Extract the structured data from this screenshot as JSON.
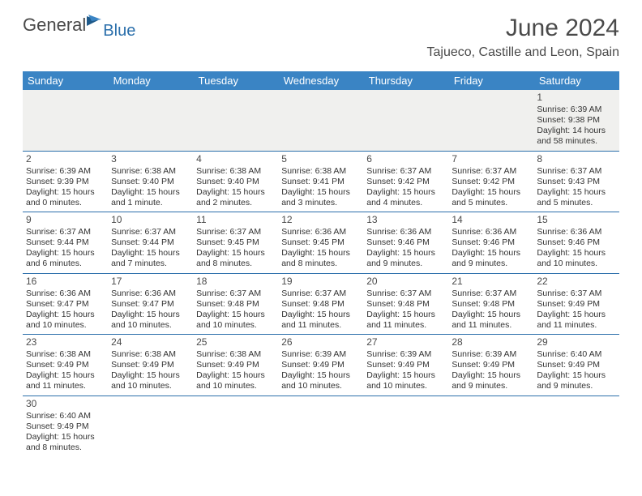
{
  "brand": {
    "part1": "General",
    "part2": "Blue",
    "flag_color_dark": "#1f5a8a",
    "flag_color_light": "#3a84c4"
  },
  "title": "June 2024",
  "location": "Tajueco, Castille and Leon, Spain",
  "header_bg": "#3a84c4",
  "header_text": "#ffffff",
  "rule_color": "#2b6fab",
  "first_row_bg": "#f0f0ee",
  "day_headers": [
    "Sunday",
    "Monday",
    "Tuesday",
    "Wednesday",
    "Thursday",
    "Friday",
    "Saturday"
  ],
  "weeks": [
    [
      null,
      null,
      null,
      null,
      null,
      null,
      {
        "n": "1",
        "sr": "Sunrise: 6:39 AM",
        "ss": "Sunset: 9:38 PM",
        "d1": "Daylight: 14 hours",
        "d2": "and 58 minutes."
      }
    ],
    [
      {
        "n": "2",
        "sr": "Sunrise: 6:39 AM",
        "ss": "Sunset: 9:39 PM",
        "d1": "Daylight: 15 hours",
        "d2": "and 0 minutes."
      },
      {
        "n": "3",
        "sr": "Sunrise: 6:38 AM",
        "ss": "Sunset: 9:40 PM",
        "d1": "Daylight: 15 hours",
        "d2": "and 1 minute."
      },
      {
        "n": "4",
        "sr": "Sunrise: 6:38 AM",
        "ss": "Sunset: 9:40 PM",
        "d1": "Daylight: 15 hours",
        "d2": "and 2 minutes."
      },
      {
        "n": "5",
        "sr": "Sunrise: 6:38 AM",
        "ss": "Sunset: 9:41 PM",
        "d1": "Daylight: 15 hours",
        "d2": "and 3 minutes."
      },
      {
        "n": "6",
        "sr": "Sunrise: 6:37 AM",
        "ss": "Sunset: 9:42 PM",
        "d1": "Daylight: 15 hours",
        "d2": "and 4 minutes."
      },
      {
        "n": "7",
        "sr": "Sunrise: 6:37 AM",
        "ss": "Sunset: 9:42 PM",
        "d1": "Daylight: 15 hours",
        "d2": "and 5 minutes."
      },
      {
        "n": "8",
        "sr": "Sunrise: 6:37 AM",
        "ss": "Sunset: 9:43 PM",
        "d1": "Daylight: 15 hours",
        "d2": "and 5 minutes."
      }
    ],
    [
      {
        "n": "9",
        "sr": "Sunrise: 6:37 AM",
        "ss": "Sunset: 9:44 PM",
        "d1": "Daylight: 15 hours",
        "d2": "and 6 minutes."
      },
      {
        "n": "10",
        "sr": "Sunrise: 6:37 AM",
        "ss": "Sunset: 9:44 PM",
        "d1": "Daylight: 15 hours",
        "d2": "and 7 minutes."
      },
      {
        "n": "11",
        "sr": "Sunrise: 6:37 AM",
        "ss": "Sunset: 9:45 PM",
        "d1": "Daylight: 15 hours",
        "d2": "and 8 minutes."
      },
      {
        "n": "12",
        "sr": "Sunrise: 6:36 AM",
        "ss": "Sunset: 9:45 PM",
        "d1": "Daylight: 15 hours",
        "d2": "and 8 minutes."
      },
      {
        "n": "13",
        "sr": "Sunrise: 6:36 AM",
        "ss": "Sunset: 9:46 PM",
        "d1": "Daylight: 15 hours",
        "d2": "and 9 minutes."
      },
      {
        "n": "14",
        "sr": "Sunrise: 6:36 AM",
        "ss": "Sunset: 9:46 PM",
        "d1": "Daylight: 15 hours",
        "d2": "and 9 minutes."
      },
      {
        "n": "15",
        "sr": "Sunrise: 6:36 AM",
        "ss": "Sunset: 9:46 PM",
        "d1": "Daylight: 15 hours",
        "d2": "and 10 minutes."
      }
    ],
    [
      {
        "n": "16",
        "sr": "Sunrise: 6:36 AM",
        "ss": "Sunset: 9:47 PM",
        "d1": "Daylight: 15 hours",
        "d2": "and 10 minutes."
      },
      {
        "n": "17",
        "sr": "Sunrise: 6:36 AM",
        "ss": "Sunset: 9:47 PM",
        "d1": "Daylight: 15 hours",
        "d2": "and 10 minutes."
      },
      {
        "n": "18",
        "sr": "Sunrise: 6:37 AM",
        "ss": "Sunset: 9:48 PM",
        "d1": "Daylight: 15 hours",
        "d2": "and 10 minutes."
      },
      {
        "n": "19",
        "sr": "Sunrise: 6:37 AM",
        "ss": "Sunset: 9:48 PM",
        "d1": "Daylight: 15 hours",
        "d2": "and 11 minutes."
      },
      {
        "n": "20",
        "sr": "Sunrise: 6:37 AM",
        "ss": "Sunset: 9:48 PM",
        "d1": "Daylight: 15 hours",
        "d2": "and 11 minutes."
      },
      {
        "n": "21",
        "sr": "Sunrise: 6:37 AM",
        "ss": "Sunset: 9:48 PM",
        "d1": "Daylight: 15 hours",
        "d2": "and 11 minutes."
      },
      {
        "n": "22",
        "sr": "Sunrise: 6:37 AM",
        "ss": "Sunset: 9:49 PM",
        "d1": "Daylight: 15 hours",
        "d2": "and 11 minutes."
      }
    ],
    [
      {
        "n": "23",
        "sr": "Sunrise: 6:38 AM",
        "ss": "Sunset: 9:49 PM",
        "d1": "Daylight: 15 hours",
        "d2": "and 11 minutes."
      },
      {
        "n": "24",
        "sr": "Sunrise: 6:38 AM",
        "ss": "Sunset: 9:49 PM",
        "d1": "Daylight: 15 hours",
        "d2": "and 10 minutes."
      },
      {
        "n": "25",
        "sr": "Sunrise: 6:38 AM",
        "ss": "Sunset: 9:49 PM",
        "d1": "Daylight: 15 hours",
        "d2": "and 10 minutes."
      },
      {
        "n": "26",
        "sr": "Sunrise: 6:39 AM",
        "ss": "Sunset: 9:49 PM",
        "d1": "Daylight: 15 hours",
        "d2": "and 10 minutes."
      },
      {
        "n": "27",
        "sr": "Sunrise: 6:39 AM",
        "ss": "Sunset: 9:49 PM",
        "d1": "Daylight: 15 hours",
        "d2": "and 10 minutes."
      },
      {
        "n": "28",
        "sr": "Sunrise: 6:39 AM",
        "ss": "Sunset: 9:49 PM",
        "d1": "Daylight: 15 hours",
        "d2": "and 9 minutes."
      },
      {
        "n": "29",
        "sr": "Sunrise: 6:40 AM",
        "ss": "Sunset: 9:49 PM",
        "d1": "Daylight: 15 hours",
        "d2": "and 9 minutes."
      }
    ],
    [
      {
        "n": "30",
        "sr": "Sunrise: 6:40 AM",
        "ss": "Sunset: 9:49 PM",
        "d1": "Daylight: 15 hours",
        "d2": "and 8 minutes."
      },
      null,
      null,
      null,
      null,
      null,
      null
    ]
  ]
}
